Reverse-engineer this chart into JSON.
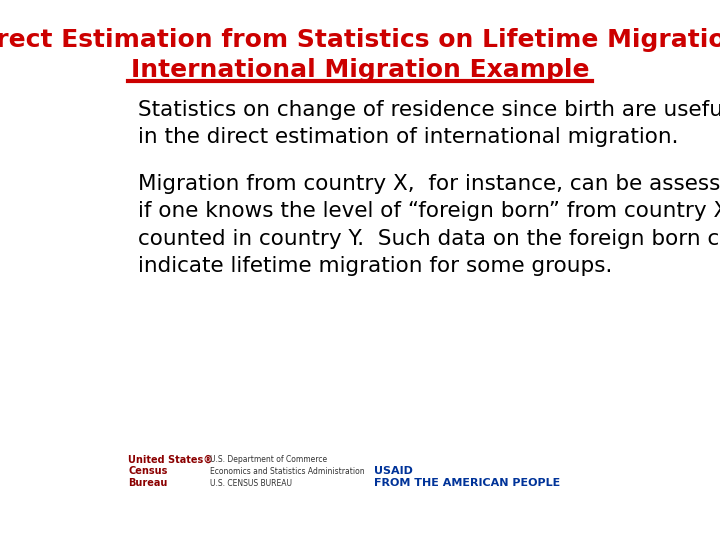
{
  "title_line1": "Direct Estimation from Statistics on Lifetime Migration:",
  "title_line2": "International Migration Example",
  "title_color": "#CC0000",
  "title_fontsize": 18,
  "separator_color": "#CC0000",
  "separator_linewidth": 3,
  "body_text1": "Statistics on change of residence since birth are useful\nin the direct estimation of international migration.",
  "body_text2": "Migration from country X,  for instance, can be assessed\nif one knows the level of “foreign born” from country X\ncounted in country Y.  Such data on the foreign born can\nindicate lifetime migration for some groups.",
  "body_color": "#000000",
  "body_fontsize": 15.5,
  "background_color": "#FFFFFF",
  "census_text": "United States®\nCensus\nBureau",
  "census_color": "#8B0000",
  "dept_text": "U.S. Department of Commerce\nEconomics and Statistics Administration\nU.S. CENSUS BUREAU",
  "dept_color": "#333333",
  "usaid_text": "USAID\nFROM THE AMERICAN PEOPLE",
  "usaid_color": "#003399"
}
